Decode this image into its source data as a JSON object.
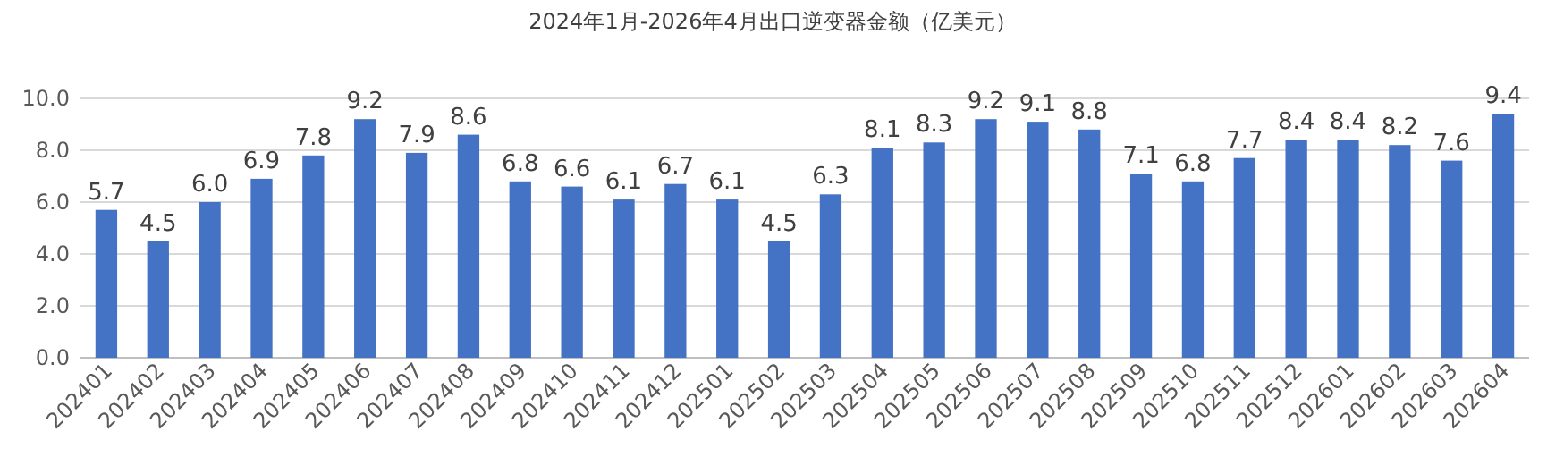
{
  "chart_data": {
    "type": "bar",
    "title": "2024年1月-2026年4月出口逆变器金额（亿美元）",
    "categories": [
      "202401",
      "202402",
      "202403",
      "202404",
      "202405",
      "202406",
      "202407",
      "202408",
      "202409",
      "202410",
      "202411",
      "202412",
      "202501",
      "202502",
      "202503",
      "202504",
      "202505",
      "202506",
      "202507",
      "202508",
      "202509",
      "202510",
      "202511",
      "202512",
      "202601",
      "202602",
      "202603",
      "202604"
    ],
    "values": [
      5.7,
      4.5,
      6.0,
      6.9,
      7.8,
      9.2,
      7.9,
      8.6,
      6.8,
      6.6,
      6.1,
      6.7,
      6.1,
      4.5,
      6.3,
      8.1,
      8.3,
      9.2,
      9.1,
      8.8,
      7.1,
      6.8,
      7.7,
      8.4,
      8.4,
      8.2,
      7.6,
      9.4
    ],
    "value_labels": [
      "5.7",
      "4.5",
      "6.0",
      "6.9",
      "7.8",
      "9.2",
      "7.9",
      "8.6",
      "6.8",
      "6.6",
      "6.1",
      "6.7",
      "6.1",
      "4.5",
      "6.3",
      "8.1",
      "8.3",
      "9.2",
      "9.1",
      "8.8",
      "7.1",
      "6.8",
      "7.7",
      "8.4",
      "8.4",
      "8.2",
      "7.6",
      "9.4"
    ],
    "color": "#4472c4",
    "ylim": [
      0,
      10
    ],
    "yticks": [
      {
        "value": 0,
        "label": "0.0"
      },
      {
        "value": 2,
        "label": "2.0"
      },
      {
        "value": 4,
        "label": "4.0"
      },
      {
        "value": 6,
        "label": "6.0"
      },
      {
        "value": 8,
        "label": "8.0"
      },
      {
        "value": 10,
        "label": "10.0"
      }
    ],
    "grid": "y"
  }
}
